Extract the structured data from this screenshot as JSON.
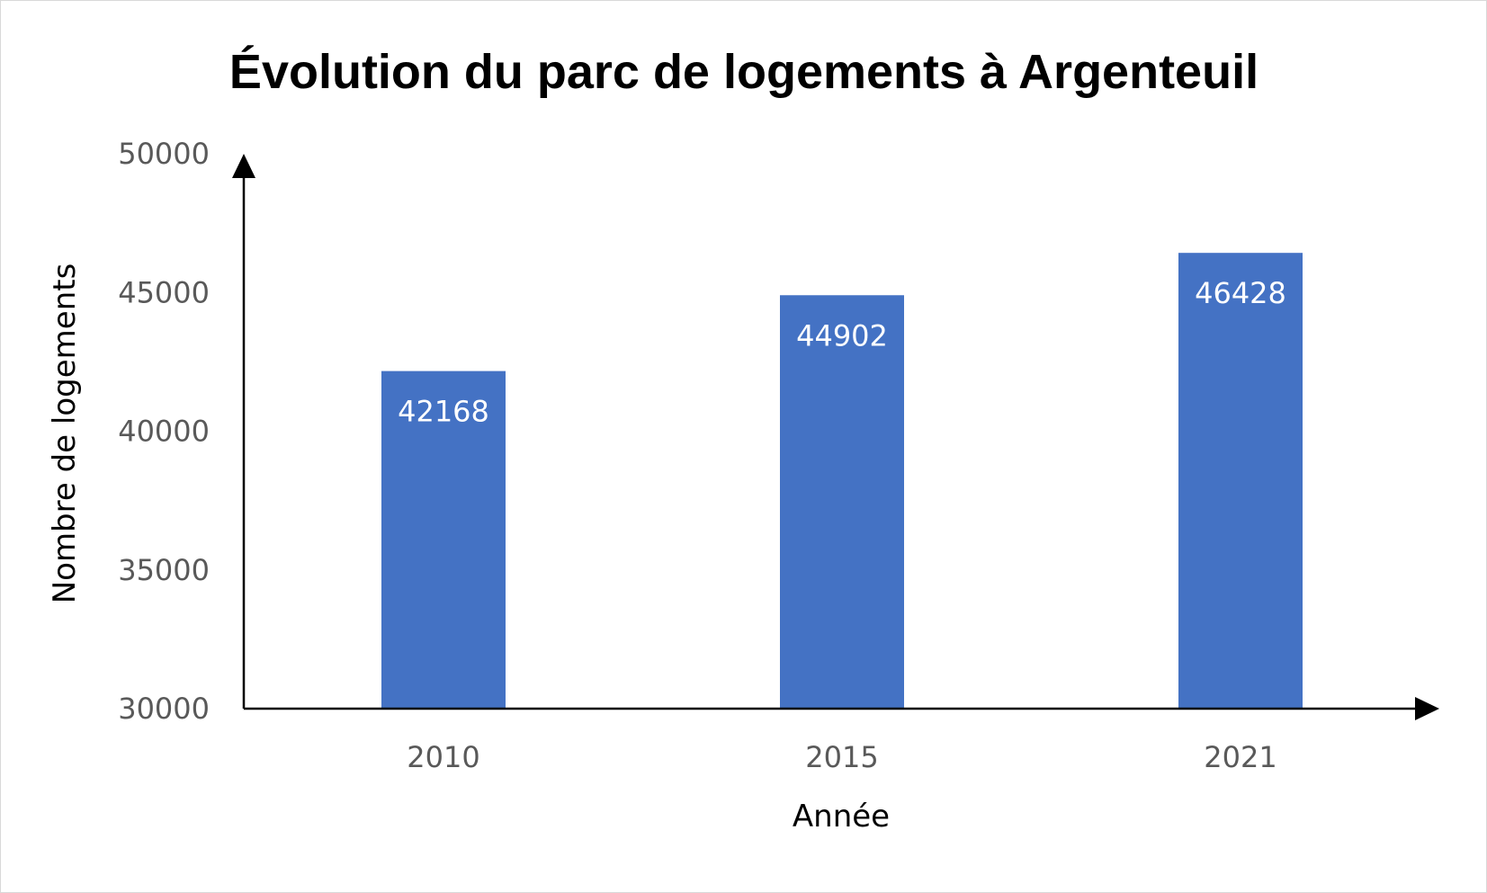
{
  "chart_data": {
    "type": "bar",
    "title": "Évolution du parc de logements à Argenteuil",
    "xlabel": "Année",
    "ylabel": "Nombre de logements",
    "categories": [
      "2010",
      "2015",
      "2021"
    ],
    "values": [
      42168,
      44902,
      46428
    ],
    "value_labels": [
      "42168",
      "44902",
      "46428"
    ],
    "ylim": [
      30000,
      50000
    ],
    "yticks": [
      "30000",
      "35000",
      "40000",
      "45000",
      "50000"
    ],
    "grid": false,
    "legend": "none",
    "colors": {
      "bar": "#4472C4",
      "axis": "#000000",
      "tick_text": "#595959",
      "data_label": "#FFFFFF"
    }
  }
}
